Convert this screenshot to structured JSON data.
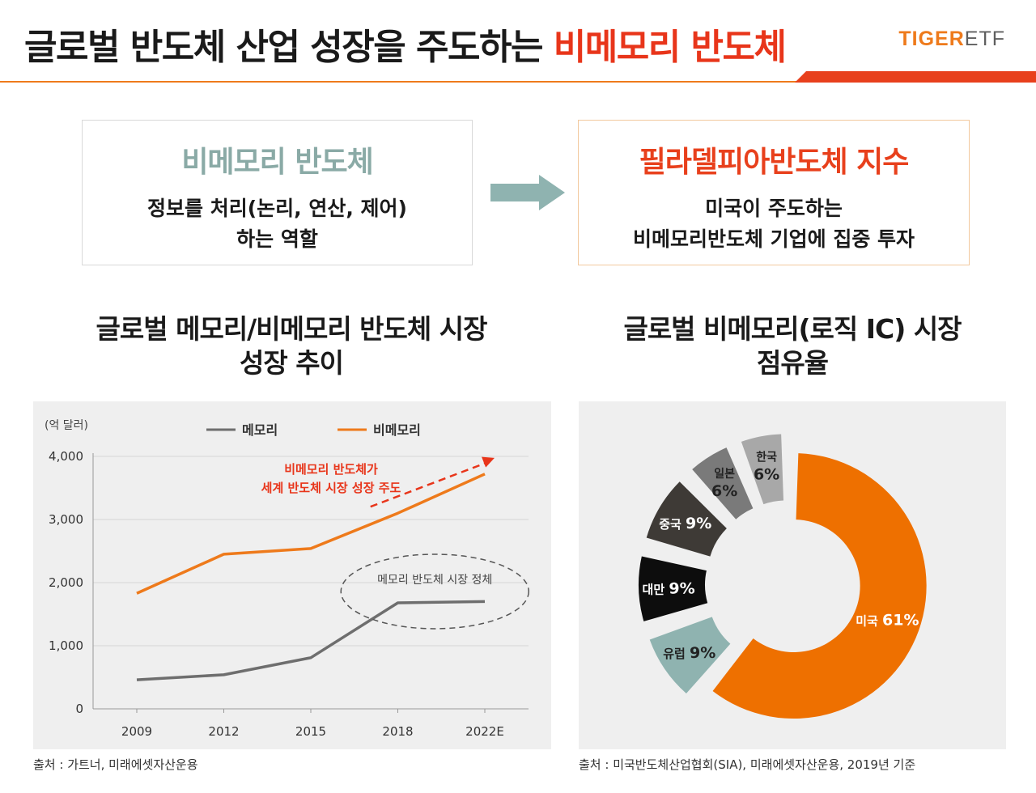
{
  "header": {
    "title_main": "글로벌 반도체 산업 성장을 주도하는 ",
    "title_accent": "비메모리 반도체",
    "logo_tiger": "TIGER",
    "logo_etf": "ETF"
  },
  "left_box": {
    "heading": "비메모리 반도체",
    "body": "정보를 처리(논리, 연산, 제어)\n하는 역할"
  },
  "right_box": {
    "heading": "필라델피아반도체 지수",
    "body": "미국이 주도하는\n비메모리반도체 기업에 집중 투자"
  },
  "left_section_title": "글로벌 메모리/비메모리 반도체 시장\n성장 추이",
  "right_section_title": "글로벌 비메모리(로직 IC) 시장\n점유율",
  "left_source": "출처 : 가트너, 미래에셋자산운용",
  "right_source": "출처 : 미국반도체산업협회(SIA), 미래에셋자산운용, 2019년 기준",
  "colors": {
    "accent_red": "#e8351a",
    "orange": "#ee7a1b",
    "teal": "#8aaaa6",
    "memory_gray": "#6e6e6e"
  },
  "chart_data": [
    {
      "type": "line",
      "unit_label": "(억 달러)",
      "categories": [
        "2009",
        "2012",
        "2015",
        "2018",
        "2022E"
      ],
      "ylim": [
        0,
        4000
      ],
      "y_ticks": [
        "0",
        "1,000",
        "2,000",
        "3,000",
        "4,000"
      ],
      "y_tick_values": [
        0,
        1000,
        2000,
        3000,
        4000
      ],
      "grid": true,
      "legend_position": "top",
      "series": [
        {
          "name": "메모리",
          "color": "#6e6e6e",
          "values": [
            460,
            540,
            810,
            1680,
            1700
          ]
        },
        {
          "name": "비메모리",
          "color": "#ee7a1b",
          "values": [
            1830,
            2450,
            2540,
            3100,
            3720
          ]
        }
      ],
      "annotations": {
        "growth_line1": "비메모리 반도체가",
        "growth_line2": "세계 반도체 시장 성장 주도",
        "stagnation": "메모리 반도체 시장 정체"
      }
    },
    {
      "type": "pie",
      "style": "donut",
      "slices": [
        {
          "label": "미국",
          "value": 61,
          "text": "61%",
          "color": "#ee7000"
        },
        {
          "label": "유럽",
          "value": 9,
          "text": "9%",
          "color": "#8fb3b0"
        },
        {
          "label": "대만",
          "value": 9,
          "text": "9%",
          "color": "#0d0d0d"
        },
        {
          "label": "중국",
          "value": 9,
          "text": "9%",
          "color": "#3e3a36"
        },
        {
          "label": "일본",
          "value": 6,
          "text": "6%",
          "color": "#7a7a7a"
        },
        {
          "label": "한국",
          "value": 6,
          "text": "6%",
          "color": "#a8a8a8"
        }
      ]
    }
  ]
}
